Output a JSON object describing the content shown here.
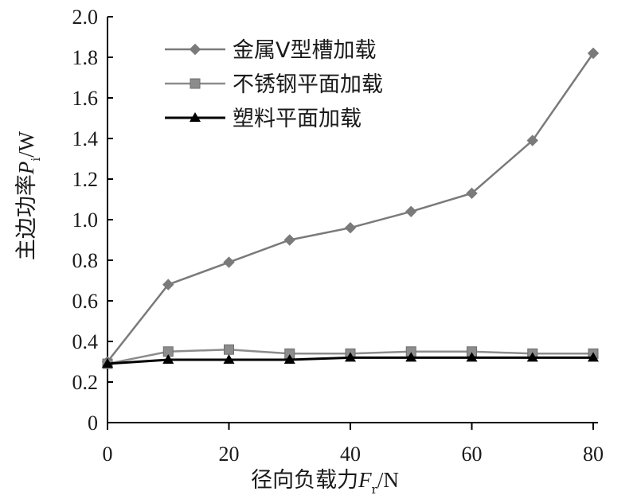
{
  "chart_data": {
    "type": "line",
    "xlabel": {
      "main": "径向负载力",
      "var": "F",
      "sub": "r",
      "unit": "/N"
    },
    "ylabel": {
      "main": "主边功率",
      "var": "P",
      "sub": "i",
      "unit": "/W"
    },
    "xlim": [
      0,
      80
    ],
    "ylim": [
      0,
      2.0
    ],
    "x_ticks": [
      0,
      20,
      40,
      60,
      80
    ],
    "y_ticks": [
      0,
      0.2,
      0.4,
      0.6,
      0.8,
      1.0,
      1.2,
      1.4,
      1.6,
      1.8,
      2.0
    ],
    "x_tick_labels": [
      "0",
      "20",
      "40",
      "60",
      "80"
    ],
    "y_tick_labels": [
      "0",
      "0.2",
      "0.4",
      "0.6",
      "0.8",
      "1.0",
      "1.2",
      "1.4",
      "1.6",
      "1.8",
      "2.0"
    ],
    "grid": false,
    "legend_position": "top-left",
    "series": [
      {
        "name": "金属V型槽加载",
        "marker": "diamond",
        "color": "#7a7a7a",
        "x": [
          0,
          10,
          20,
          30,
          40,
          50,
          60,
          70,
          80
        ],
        "y": [
          0.3,
          0.68,
          0.79,
          0.9,
          0.96,
          1.04,
          1.13,
          1.39,
          1.82
        ]
      },
      {
        "name": "不锈钢平面加载",
        "marker": "square",
        "color": "#8c8c8c",
        "x": [
          0,
          10,
          20,
          30,
          40,
          50,
          60,
          70,
          80
        ],
        "y": [
          0.29,
          0.35,
          0.36,
          0.34,
          0.34,
          0.35,
          0.35,
          0.34,
          0.34
        ]
      },
      {
        "name": "塑料平面加载",
        "marker": "triangle",
        "color": "#000000",
        "x": [
          0,
          10,
          20,
          30,
          40,
          50,
          60,
          70,
          80
        ],
        "y": [
          0.29,
          0.31,
          0.31,
          0.31,
          0.32,
          0.32,
          0.32,
          0.32,
          0.32
        ]
      }
    ]
  }
}
